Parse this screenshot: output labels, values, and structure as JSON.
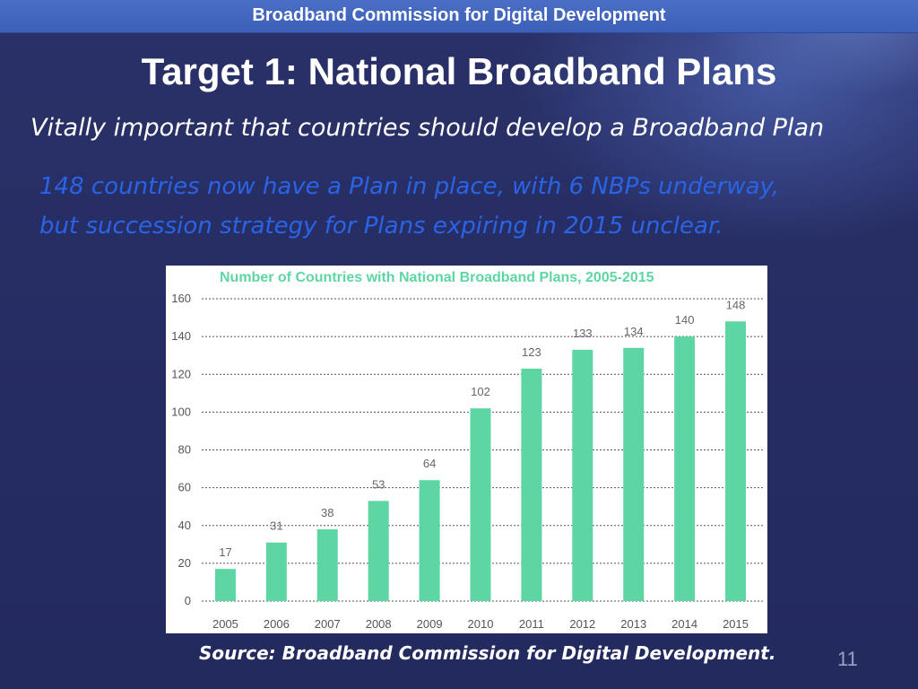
{
  "header": {
    "text": "Broadband Commission for Digital Development"
  },
  "slide": {
    "title": "Target 1: National Broadband Plans",
    "subtitle": "Vitally important that countries should develop a Broadband Plan",
    "highlight_line1": "148 countries now have a Plan in place, with 6 NBPs underway,",
    "highlight_line2": "but succession strategy for Plans expiring in 2015 unclear.",
    "source": "Source: Broadband Commission for Digital Development.",
    "page_number": "11"
  },
  "colors": {
    "background": "#262d63",
    "header_bar": "#4468c0",
    "highlight_text": "#2a64e6",
    "bar": "#5dd6a4",
    "chart_title": "#5dd6a4"
  },
  "chart_data": {
    "type": "bar",
    "title": "Number of Countries with National Broadband Plans, 2005-2015",
    "categories": [
      "2005",
      "2006",
      "2007",
      "2008",
      "2009",
      "2010",
      "2011",
      "2012",
      "2013",
      "2014",
      "2015"
    ],
    "values": [
      17,
      31,
      38,
      53,
      64,
      102,
      123,
      133,
      134,
      140,
      148
    ],
    "xlabel": "",
    "ylabel": "",
    "ylim": [
      0,
      160
    ],
    "yticks": [
      0,
      20,
      40,
      60,
      80,
      100,
      120,
      140,
      160
    ],
    "grid": true,
    "data_labels": true
  }
}
